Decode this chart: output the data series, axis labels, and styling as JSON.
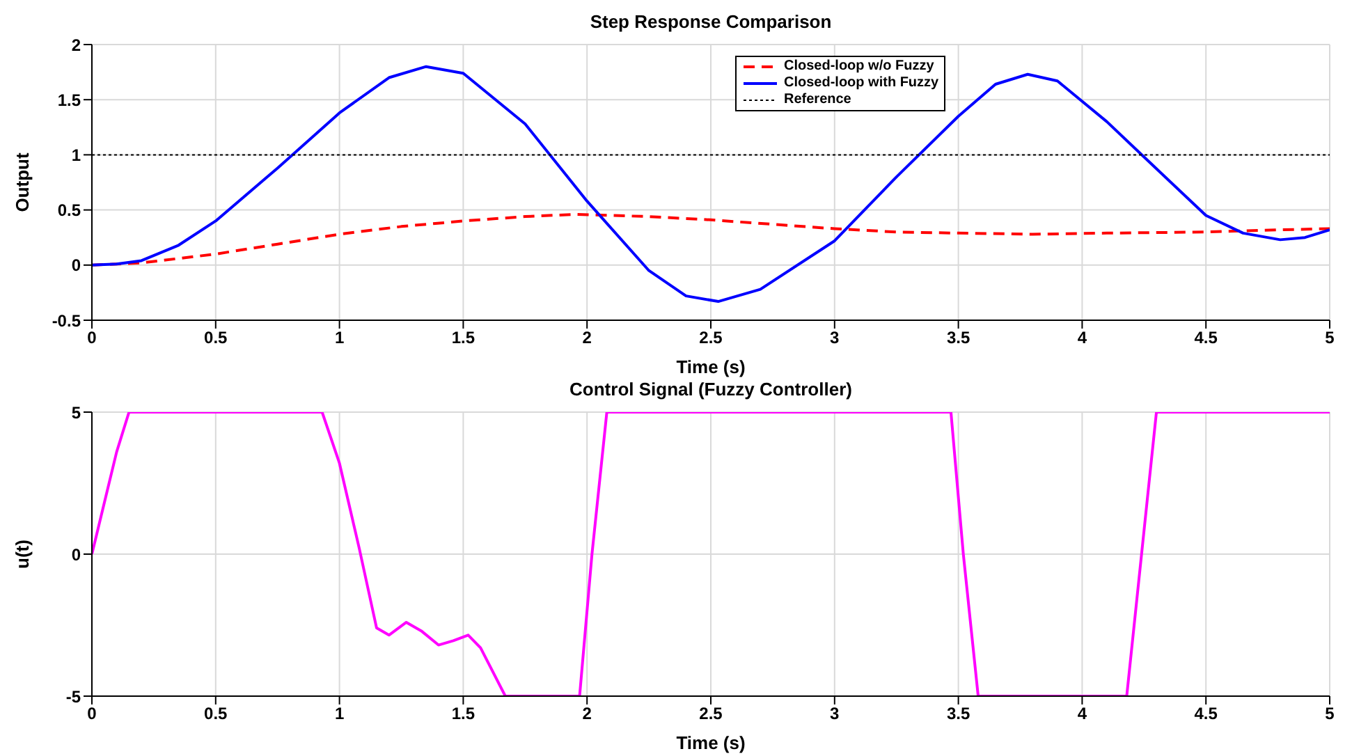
{
  "chart_data": [
    {
      "type": "line",
      "title": "Step Response Comparison",
      "xlabel": "Time (s)",
      "ylabel": "Output",
      "xlim": [
        0,
        5
      ],
      "xticks": [
        0,
        0.5,
        1,
        1.5,
        2,
        2.5,
        3,
        3.5,
        4,
        4.5,
        5
      ],
      "ylim": [
        -0.5,
        2
      ],
      "yticks": [
        -0.5,
        0,
        0.5,
        1,
        1.5,
        2
      ],
      "grid": true,
      "legend": "top right",
      "series": [
        {
          "name": "Closed-loop w/o Fuzzy",
          "color": "#ff0000",
          "line_style": "dashed",
          "x": [
            0,
            0.2,
            0.5,
            0.75,
            1,
            1.25,
            1.5,
            1.75,
            1.95,
            2.25,
            2.5,
            2.75,
            3,
            3.25,
            3.5,
            3.8,
            4.1,
            4.5,
            4.8,
            5
          ],
          "values": [
            0,
            0.02,
            0.1,
            0.19,
            0.28,
            0.35,
            0.4,
            0.44,
            0.46,
            0.44,
            0.41,
            0.37,
            0.33,
            0.3,
            0.29,
            0.28,
            0.29,
            0.3,
            0.32,
            0.33
          ]
        },
        {
          "name": "Closed-loop with Fuzzy",
          "color": "#0000ff",
          "line_style": "solid",
          "x": [
            0,
            0.1,
            0.2,
            0.35,
            0.5,
            0.75,
            1,
            1.2,
            1.35,
            1.5,
            1.75,
            2,
            2.25,
            2.4,
            2.53,
            2.7,
            3,
            3.25,
            3.5,
            3.65,
            3.78,
            3.9,
            4.1,
            4.25,
            4.5,
            4.65,
            4.8,
            4.9,
            5
          ],
          "values": [
            0,
            0.01,
            0.04,
            0.18,
            0.4,
            0.88,
            1.38,
            1.7,
            1.8,
            1.74,
            1.28,
            0.58,
            -0.05,
            -0.28,
            -0.33,
            -0.22,
            0.22,
            0.8,
            1.35,
            1.64,
            1.73,
            1.67,
            1.3,
            0.98,
            0.45,
            0.29,
            0.23,
            0.25,
            0.32
          ]
        },
        {
          "name": "Reference",
          "color": "#000000",
          "line_style": "dotted",
          "x": [
            0,
            5
          ],
          "values": [
            1,
            1
          ]
        }
      ]
    },
    {
      "type": "line",
      "title": "Control Signal (Fuzzy Controller)",
      "xlabel": "Time (s)",
      "ylabel": "u(t)",
      "xlim": [
        0,
        5
      ],
      "xticks": [
        0,
        0.5,
        1,
        1.5,
        2,
        2.5,
        3,
        3.5,
        4,
        4.5,
        5
      ],
      "ylim": [
        -5,
        5
      ],
      "yticks": [
        -5,
        0,
        5
      ],
      "grid": true,
      "legend": false,
      "series": [
        {
          "color": "#ff00ff",
          "line_style": "solid",
          "x": [
            0,
            0.05,
            0.1,
            0.15,
            0.93,
            1.0,
            1.08,
            1.15,
            1.2,
            1.27,
            1.33,
            1.4,
            1.46,
            1.52,
            1.57,
            1.67,
            1.97,
            2.02,
            2.08,
            3.47,
            3.52,
            3.58,
            4.18,
            4.24,
            4.3,
            5
          ],
          "values": [
            0,
            1.8,
            3.6,
            5,
            5,
            3.2,
            0.2,
            -2.6,
            -2.85,
            -2.4,
            -2.7,
            -3.2,
            -3.05,
            -2.85,
            -3.3,
            -5,
            -5,
            0,
            5,
            5,
            0,
            -5,
            -5,
            0,
            5,
            5
          ]
        }
      ]
    }
  ]
}
